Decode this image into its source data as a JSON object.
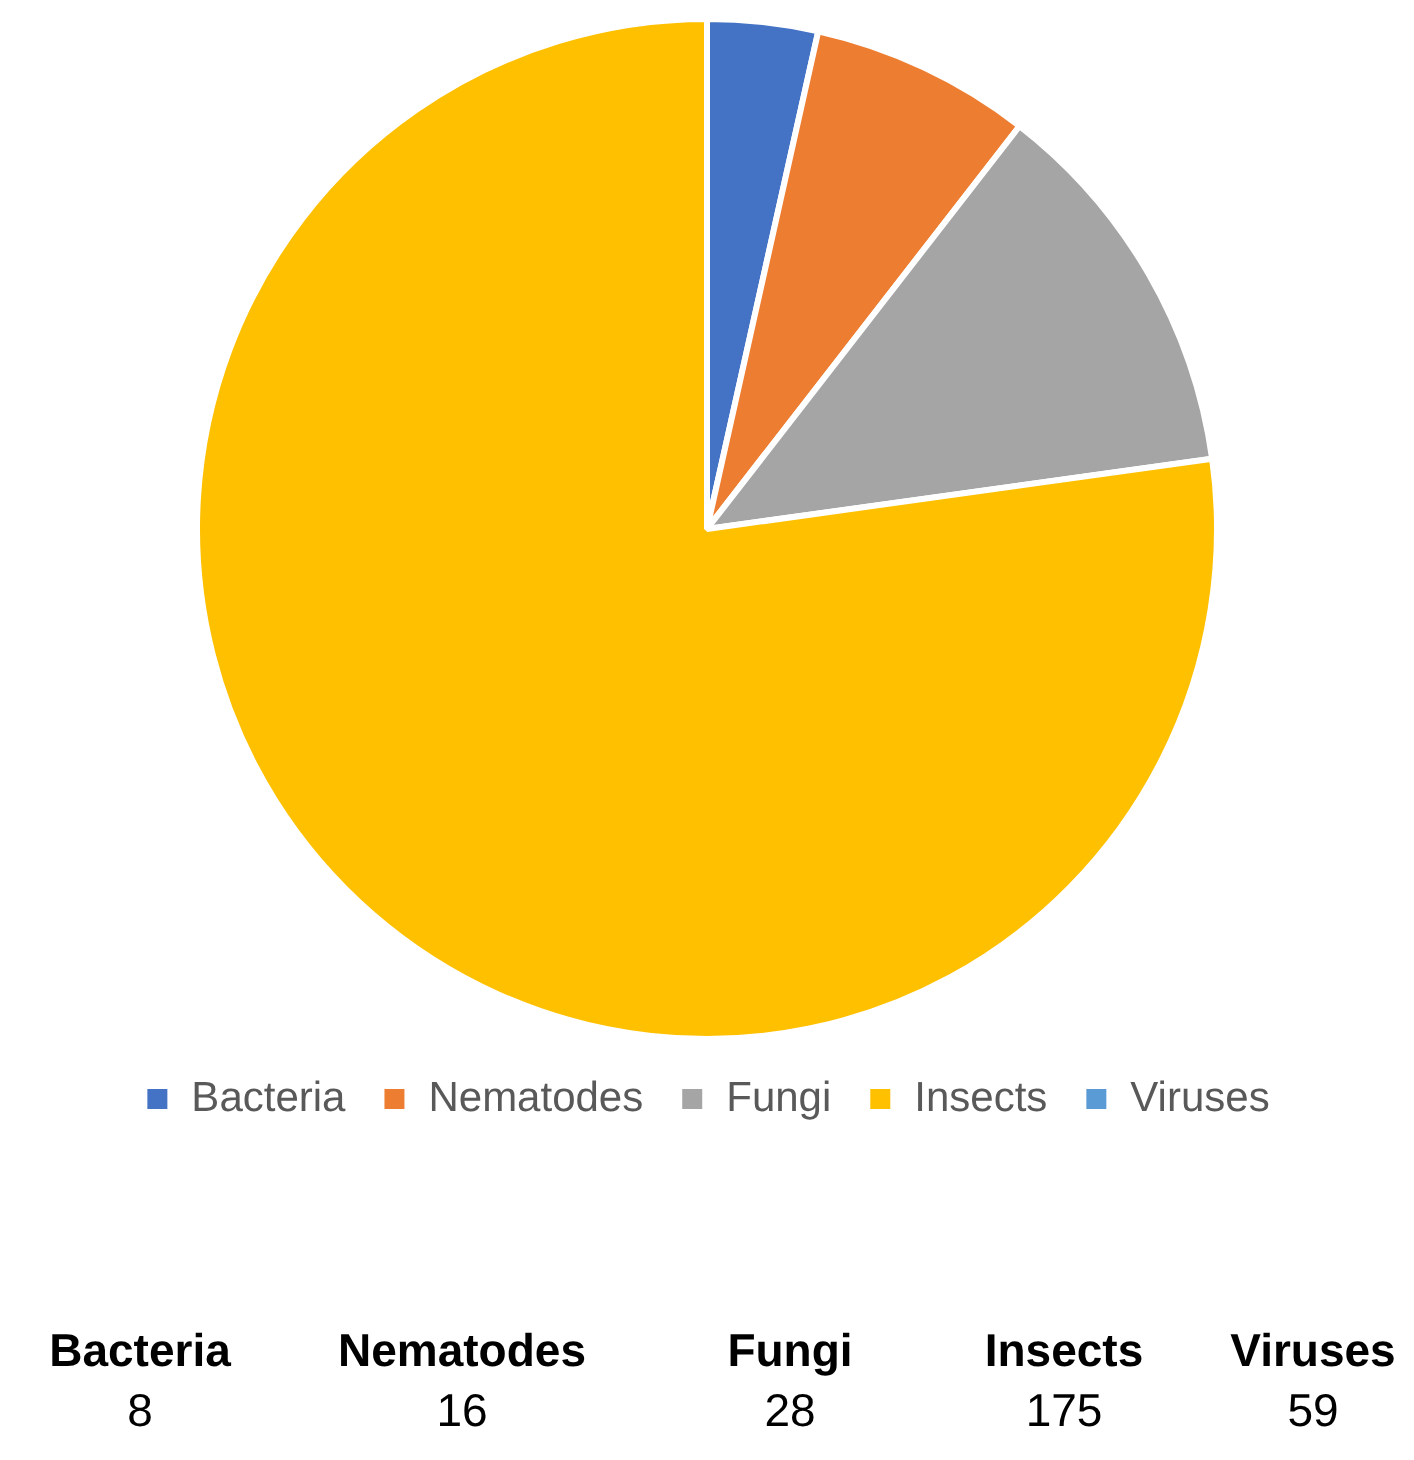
{
  "chart_data": {
    "type": "pie",
    "categories": [
      "Bacteria",
      "Nematodes",
      "Fungi",
      "Insects",
      "Viruses"
    ],
    "values": [
      3.5,
      7.0,
      12.3,
      77.2,
      null
    ],
    "annotations": [
      "8",
      "16",
      "28",
      "175",
      "59"
    ],
    "colors": [
      "#4472c4",
      "#ed7d31",
      "#a5a5a5",
      "#ffc000",
      "#5b9bd5"
    ],
    "legend": "bottom"
  }
}
